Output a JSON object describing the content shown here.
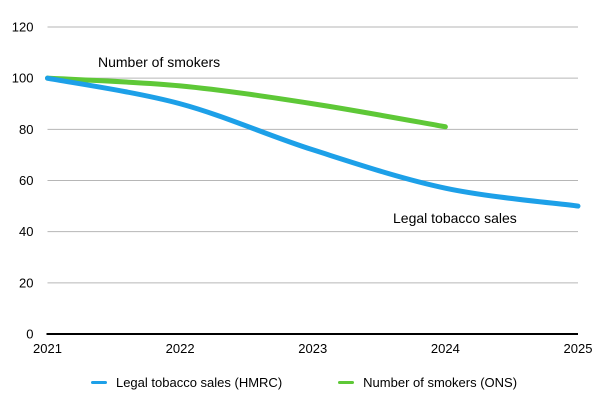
{
  "chart_data": {
    "type": "line",
    "title": "",
    "xlabel": "",
    "ylabel": "",
    "x": [
      "2021",
      "2022",
      "2023",
      "2024",
      "2025"
    ],
    "series": [
      {
        "name": "Legal tobacco sales (HMRC)",
        "color": "#1da0e8",
        "values": [
          100,
          90,
          72,
          57,
          50
        ]
      },
      {
        "name": "Number of smokers (ONS)",
        "color": "#5ec837",
        "values": [
          100,
          97,
          90,
          81,
          null
        ]
      }
    ],
    "ylim": [
      0,
      120
    ],
    "ytick_step": 20,
    "yticks": [
      0,
      20,
      40,
      60,
      80,
      100,
      120
    ],
    "grid": true,
    "legend_position": "bottom",
    "annotations": [
      {
        "text": "Number of smokers"
      },
      {
        "text": "Legal tobacco sales"
      }
    ]
  },
  "legend": {
    "items": [
      {
        "label": "Legal tobacco sales (HMRC)",
        "color": "#1da0e8"
      },
      {
        "label": "Number of smokers (ONS)",
        "color": "#5ec837"
      }
    ]
  },
  "colors": {
    "background": "#ffffff",
    "grid": "#b6b6b6",
    "axis": "#000000",
    "text": "#000000"
  }
}
